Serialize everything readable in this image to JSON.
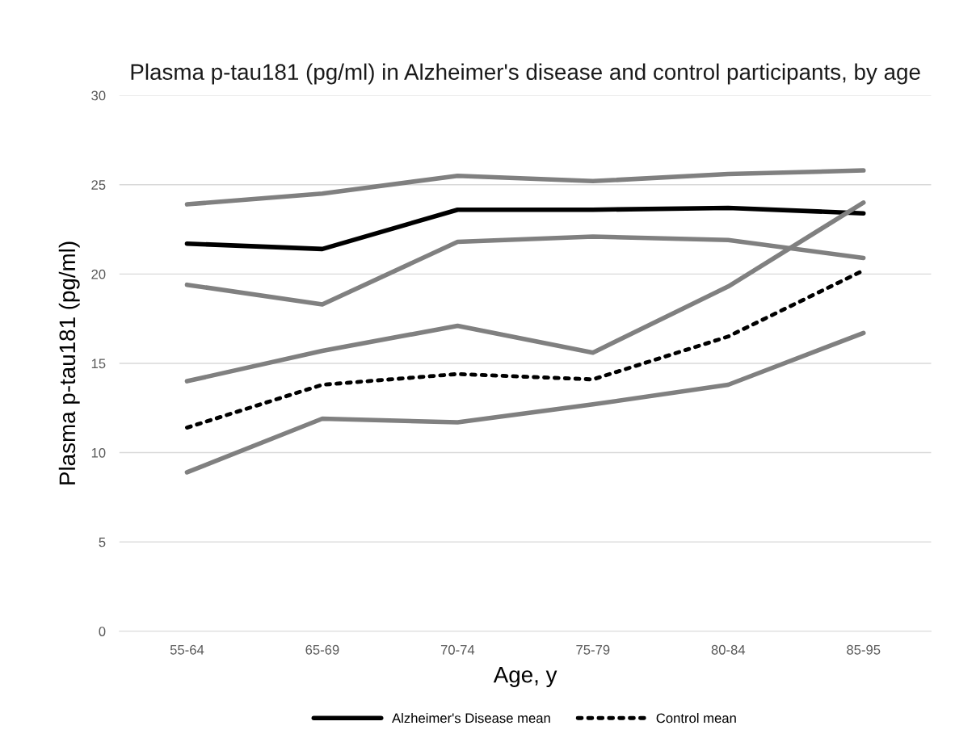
{
  "chart_data": {
    "type": "line",
    "title": "Plasma p-tau181 (pg/ml) in Alzheimer's disease and control participants, by age",
    "xlabel": "Age, y",
    "ylabel": "Plasma p-tau181 (pg/ml)",
    "categories": [
      "55-64",
      "65-69",
      "70-74",
      "75-79",
      "80-84",
      "85-95"
    ],
    "ylim": [
      0,
      30
    ],
    "yticks": [
      0,
      5,
      10,
      15,
      20,
      25,
      30
    ],
    "grid": "y",
    "legend": "bottom",
    "marker": "none",
    "series": [
      {
        "color": "#808080",
        "values": [
          23.9,
          24.5,
          25.5,
          25.2,
          25.6,
          25.8
        ]
      },
      {
        "name": "Alzheimer's Disease mean",
        "color": "#000000",
        "values": [
          21.7,
          21.4,
          23.6,
          23.6,
          23.7,
          23.4
        ]
      },
      {
        "color": "#808080",
        "values": [
          19.4,
          18.3,
          21.8,
          22.1,
          21.9,
          20.9
        ]
      },
      {
        "color": "#808080",
        "values": [
          14.0,
          15.7,
          17.1,
          15.6,
          19.3,
          24.0
        ]
      },
      {
        "name": "Control mean",
        "color": "#000000",
        "line_style": "dotted",
        "values": [
          11.4,
          13.8,
          14.4,
          14.1,
          16.5,
          20.2
        ]
      },
      {
        "color": "#808080",
        "values": [
          8.9,
          11.9,
          11.7,
          12.7,
          13.8,
          16.7
        ]
      }
    ]
  }
}
